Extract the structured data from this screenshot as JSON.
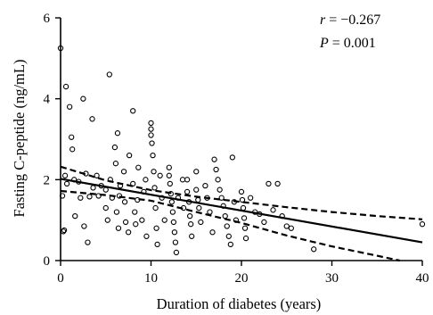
{
  "chart_data": {
    "type": "scatter",
    "title": "",
    "xlabel": "Duration of diabetes (years)",
    "ylabel": "Fasting C-peptide (ng/mL)",
    "xlim": [
      0,
      40
    ],
    "ylim": [
      0,
      6
    ],
    "x_ticks": [
      0,
      10,
      20,
      30,
      40
    ],
    "y_ticks": [
      0,
      2,
      4,
      6
    ],
    "grid": false,
    "annotations": {
      "r_label": "r",
      "r_value": " = −0.267",
      "p_label": "P",
      "p_value": " = 0.001"
    },
    "fit_line": {
      "x": [
        0,
        40
      ],
      "y": [
        2.02,
        0.45
      ]
    },
    "ci_upper": {
      "x": [
        0,
        5,
        10,
        15,
        20,
        25,
        30,
        35,
        40
      ],
      "y": [
        2.32,
        1.98,
        1.74,
        1.58,
        1.45,
        1.32,
        1.2,
        1.1,
        1.02
      ]
    },
    "ci_lower": {
      "x": [
        0,
        5,
        10,
        15,
        20,
        25,
        30,
        35,
        37.5
      ],
      "y": [
        1.72,
        1.62,
        1.48,
        1.2,
        0.93,
        0.62,
        0.35,
        0.12,
        0.0
      ]
    },
    "points": [
      [
        0,
        5.25
      ],
      [
        0.3,
        0.72
      ],
      [
        0.2,
        1.6
      ],
      [
        0.5,
        2.1
      ],
      [
        0.6,
        4.3
      ],
      [
        0.7,
        1.9
      ],
      [
        0.4,
        0.75
      ],
      [
        1,
        3.8
      ],
      [
        1.2,
        3.05
      ],
      [
        1.3,
        2.75
      ],
      [
        1.5,
        2.0
      ],
      [
        1.6,
        1.1
      ],
      [
        2,
        1.95
      ],
      [
        2.2,
        1.55
      ],
      [
        2.5,
        4.0
      ],
      [
        2.6,
        0.85
      ],
      [
        2.8,
        2.15
      ],
      [
        3,
        0.45
      ],
      [
        3.2,
        1.58
      ],
      [
        3.5,
        3.5
      ],
      [
        3.6,
        1.8
      ],
      [
        4,
        2.1
      ],
      [
        4.2,
        1.6
      ],
      [
        4.5,
        1.85
      ],
      [
        5,
        1.3
      ],
      [
        5,
        1.75
      ],
      [
        5.2,
        1.0
      ],
      [
        5.4,
        4.6
      ],
      [
        5.5,
        2.0
      ],
      [
        5.7,
        1.55
      ],
      [
        6,
        2.8
      ],
      [
        6.1,
        2.4
      ],
      [
        6.2,
        1.2
      ],
      [
        6.3,
        3.15
      ],
      [
        6.4,
        0.8
      ],
      [
        6.5,
        1.6
      ],
      [
        6.6,
        1.85
      ],
      [
        7,
        2.2
      ],
      [
        7.1,
        1.45
      ],
      [
        7.2,
        0.95
      ],
      [
        7.5,
        0.7
      ],
      [
        7.6,
        2.6
      ],
      [
        8,
        3.7
      ],
      [
        8,
        1.9
      ],
      [
        8.2,
        1.2
      ],
      [
        8.3,
        0.9
      ],
      [
        8.5,
        1.5
      ],
      [
        8.6,
        2.3
      ],
      [
        9,
        1.0
      ],
      [
        9.2,
        1.7
      ],
      [
        9.4,
        2.0
      ],
      [
        9.5,
        0.6
      ],
      [
        10,
        3.4
      ],
      [
        10,
        3.25
      ],
      [
        10,
        3.1
      ],
      [
        10.1,
        2.9
      ],
      [
        10.2,
        2.6
      ],
      [
        10.3,
        2.2
      ],
      [
        10.4,
        1.8
      ],
      [
        10.5,
        1.3
      ],
      [
        10.6,
        0.8
      ],
      [
        10.7,
        0.4
      ],
      [
        11,
        2.1
      ],
      [
        11.2,
        1.55
      ],
      [
        11.5,
        1.0
      ],
      [
        12,
        2.3
      ],
      [
        12,
        2.1
      ],
      [
        12.1,
        1.9
      ],
      [
        12.2,
        1.65
      ],
      [
        12.3,
        1.45
      ],
      [
        12.4,
        1.2
      ],
      [
        12.5,
        0.95
      ],
      [
        12.6,
        0.7
      ],
      [
        12.7,
        0.45
      ],
      [
        12.8,
        0.2
      ],
      [
        13,
        1.55
      ],
      [
        13.5,
        2.0
      ],
      [
        13.6,
        1.3
      ],
      [
        14,
        2.0
      ],
      [
        14,
        1.7
      ],
      [
        14.2,
        1.45
      ],
      [
        14.3,
        1.1
      ],
      [
        14.4,
        0.9
      ],
      [
        14.5,
        0.6
      ],
      [
        15,
        2.2
      ],
      [
        15,
        1.75
      ],
      [
        15.2,
        1.5
      ],
      [
        15.3,
        1.3
      ],
      [
        15.5,
        0.95
      ],
      [
        16,
        1.85
      ],
      [
        16.2,
        1.55
      ],
      [
        16.5,
        1.2
      ],
      [
        16.8,
        0.7
      ],
      [
        17,
        2.5
      ],
      [
        17.2,
        2.25
      ],
      [
        17.4,
        2.0
      ],
      [
        17.6,
        1.75
      ],
      [
        17.8,
        1.55
      ],
      [
        18,
        1.35
      ],
      [
        18.2,
        1.1
      ],
      [
        18.4,
        0.85
      ],
      [
        18.6,
        0.6
      ],
      [
        18.8,
        0.4
      ],
      [
        19,
        2.55
      ],
      [
        19.2,
        1.45
      ],
      [
        19.4,
        1.0
      ],
      [
        20,
        1.7
      ],
      [
        20.1,
        1.5
      ],
      [
        20.2,
        1.3
      ],
      [
        20.3,
        1.05
      ],
      [
        20.4,
        0.8
      ],
      [
        20.5,
        0.55
      ],
      [
        21,
        1.55
      ],
      [
        21.5,
        1.2
      ],
      [
        22,
        1.15
      ],
      [
        22.5,
        0.95
      ],
      [
        23,
        1.9
      ],
      [
        23.5,
        1.25
      ],
      [
        24,
        1.9
      ],
      [
        24.5,
        1.1
      ],
      [
        25,
        0.85
      ],
      [
        25.5,
        0.8
      ],
      [
        28,
        0.28
      ],
      [
        40,
        0.9
      ]
    ]
  }
}
